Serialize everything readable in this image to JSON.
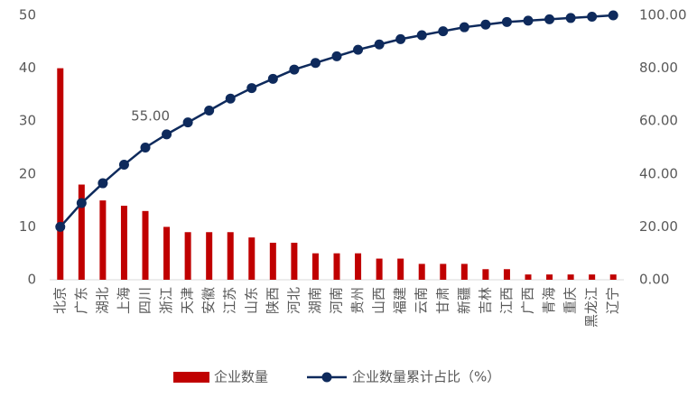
{
  "chart_data": {
    "type": "bar",
    "categories": [
      "北京",
      "广东",
      "湖北",
      "上海",
      "四川",
      "浙江",
      "天津",
      "安徽",
      "江苏",
      "山东",
      "陕西",
      "河北",
      "湖南",
      "河南",
      "贵州",
      "山西",
      "福建",
      "云南",
      "甘肃",
      "新疆",
      "吉林",
      "江西",
      "广西",
      "青海",
      "重庆",
      "黑龙江",
      "辽宁"
    ],
    "series": [
      {
        "name": "企业数量",
        "type": "bar",
        "color": "#c00000",
        "values": [
          40,
          18,
          15,
          14,
          13,
          10,
          9,
          9,
          9,
          8,
          7,
          7,
          5,
          5,
          5,
          4,
          4,
          3,
          3,
          3,
          2,
          2,
          1,
          1,
          1,
          1,
          1
        ]
      },
      {
        "name": "企业数量累计占比（%）",
        "type": "line",
        "axis": "y2",
        "color": "#0e2a5c",
        "values": [
          20,
          29,
          36.5,
          43.5,
          50,
          55,
          59.5,
          64,
          68.5,
          72.5,
          76,
          79.5,
          82,
          84.5,
          87,
          89,
          91,
          92.5,
          94,
          95.5,
          96.5,
          97.5,
          98,
          98.5,
          99,
          99.5,
          100
        ],
        "value_labels": [
          null,
          null,
          null,
          null,
          null,
          "55.00",
          null,
          null,
          null,
          null,
          null,
          null,
          null,
          null,
          null,
          null,
          null,
          null,
          null,
          null,
          null,
          null,
          null,
          null,
          null,
          null,
          null
        ]
      }
    ],
    "ylim": [
      0,
      50
    ],
    "yticks": [
      0,
      10,
      20,
      30,
      40,
      50
    ],
    "y2lim": [
      0,
      100
    ],
    "y2ticks": [
      {
        "value": 0,
        "label": "0.00"
      },
      {
        "value": 20,
        "label": "20.00"
      },
      {
        "value": 40,
        "label": "40.00"
      },
      {
        "value": 60,
        "label": "60.00"
      },
      {
        "value": 80,
        "label": "80.00"
      },
      {
        "value": 100,
        "label": "100.00"
      }
    ],
    "grid": false,
    "legend": "bottom"
  }
}
